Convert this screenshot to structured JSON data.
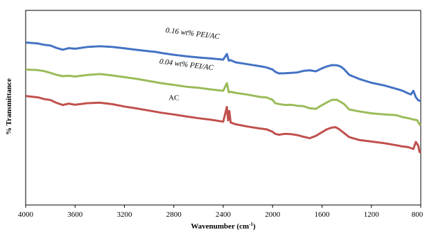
{
  "chart_data": {
    "type": "line",
    "xlabel": "Wavenumber (cm",
    "xlabel_sup": "-1",
    "xlabel_close": ")",
    "ylabel": "% Transmittance",
    "xlim": [
      4000,
      800
    ],
    "x_reversed": true,
    "x_ticks": [
      4000,
      3600,
      3200,
      2800,
      2400,
      2000,
      1600,
      1200,
      800
    ],
    "y_ticks_shown": false,
    "grid": false,
    "legend": "none",
    "series": [
      {
        "name": "0.16 wt% PEI/AC",
        "name_style": "italic",
        "color": "#4472C4",
        "points": [
          [
            4000,
            83.5
          ],
          [
            3900,
            83.0
          ],
          [
            3850,
            82.3
          ],
          [
            3800,
            82.0
          ],
          [
            3750,
            80.7
          ],
          [
            3700,
            79.8
          ],
          [
            3650,
            80.6
          ],
          [
            3600,
            80.3
          ],
          [
            3500,
            81.2
          ],
          [
            3400,
            81.6
          ],
          [
            3300,
            81.2
          ],
          [
            3200,
            80.5
          ],
          [
            3100,
            79.7
          ],
          [
            3000,
            79.0
          ],
          [
            2950,
            78.7
          ],
          [
            2900,
            78.1
          ],
          [
            2800,
            77.2
          ],
          [
            2700,
            76.4
          ],
          [
            2600,
            75.8
          ],
          [
            2500,
            75.3
          ],
          [
            2400,
            74.7
          ],
          [
            2370,
            77.6
          ],
          [
            2355,
            74.2
          ],
          [
            2340,
            74.4
          ],
          [
            2300,
            73.3
          ],
          [
            2200,
            72.3
          ],
          [
            2100,
            71.3
          ],
          [
            2050,
            70.7
          ],
          [
            2000,
            69.6
          ],
          [
            1980,
            68.5
          ],
          [
            1950,
            67.6
          ],
          [
            1900,
            67.7
          ],
          [
            1850,
            67.9
          ],
          [
            1800,
            68.1
          ],
          [
            1750,
            68.9
          ],
          [
            1700,
            69.2
          ],
          [
            1650,
            68.7
          ],
          [
            1600,
            70.2
          ],
          [
            1560,
            71.2
          ],
          [
            1520,
            71.9
          ],
          [
            1480,
            71.8
          ],
          [
            1450,
            71.2
          ],
          [
            1420,
            69.7
          ],
          [
            1380,
            66.9
          ],
          [
            1300,
            64.8
          ],
          [
            1200,
            62.8
          ],
          [
            1100,
            61.5
          ],
          [
            1000,
            59.7
          ],
          [
            950,
            58.8
          ],
          [
            900,
            57.3
          ],
          [
            880,
            56.8
          ],
          [
            860,
            58.7
          ],
          [
            840,
            55.4
          ],
          [
            820,
            53.8
          ],
          [
            800,
            53.5
          ]
        ]
      },
      {
        "name": "0.04 wt% PEI/AC",
        "name_style": "italic",
        "color": "#9BBB59",
        "points": [
          [
            4000,
            69.6
          ],
          [
            3900,
            69.3
          ],
          [
            3850,
            68.8
          ],
          [
            3800,
            67.9
          ],
          [
            3750,
            66.9
          ],
          [
            3700,
            66.2
          ],
          [
            3650,
            66.4
          ],
          [
            3600,
            66.0
          ],
          [
            3500,
            66.8
          ],
          [
            3400,
            67.3
          ],
          [
            3300,
            66.6
          ],
          [
            3200,
            65.7
          ],
          [
            3100,
            64.8
          ],
          [
            3000,
            63.7
          ],
          [
            2900,
            62.6
          ],
          [
            2800,
            61.7
          ],
          [
            2700,
            60.8
          ],
          [
            2600,
            60.2
          ],
          [
            2500,
            59.4
          ],
          [
            2400,
            58.7
          ],
          [
            2370,
            62.6
          ],
          [
            2355,
            57.9
          ],
          [
            2340,
            58.2
          ],
          [
            2300,
            57.6
          ],
          [
            2200,
            56.7
          ],
          [
            2100,
            55.5
          ],
          [
            2050,
            55.3
          ],
          [
            2000,
            54.0
          ],
          [
            1980,
            52.4
          ],
          [
            1950,
            51.9
          ],
          [
            1900,
            51.4
          ],
          [
            1850,
            51.5
          ],
          [
            1800,
            51.0
          ],
          [
            1750,
            50.8
          ],
          [
            1700,
            49.7
          ],
          [
            1650,
            49.4
          ],
          [
            1600,
            51.3
          ],
          [
            1560,
            52.7
          ],
          [
            1520,
            54.0
          ],
          [
            1480,
            54.1
          ],
          [
            1450,
            53.0
          ],
          [
            1420,
            51.8
          ],
          [
            1380,
            49.1
          ],
          [
            1300,
            48.1
          ],
          [
            1200,
            47.1
          ],
          [
            1100,
            46.6
          ],
          [
            1000,
            46.2
          ],
          [
            950,
            45.2
          ],
          [
            900,
            44.6
          ],
          [
            860,
            43.9
          ],
          [
            830,
            43.6
          ],
          [
            810,
            41.4
          ],
          [
            800,
            41.0
          ]
        ]
      },
      {
        "name": "AC",
        "name_style": "normal",
        "color": "#C0504D",
        "points": [
          [
            4000,
            56.0
          ],
          [
            3900,
            55.3
          ],
          [
            3850,
            54.4
          ],
          [
            3800,
            54.0
          ],
          [
            3750,
            52.5
          ],
          [
            3700,
            51.4
          ],
          [
            3650,
            52.1
          ],
          [
            3600,
            51.5
          ],
          [
            3500,
            52.3
          ],
          [
            3400,
            52.6
          ],
          [
            3300,
            51.8
          ],
          [
            3200,
            50.6
          ],
          [
            3100,
            49.6
          ],
          [
            3000,
            48.5
          ],
          [
            2900,
            47.4
          ],
          [
            2800,
            46.5
          ],
          [
            2700,
            45.5
          ],
          [
            2600,
            44.6
          ],
          [
            2500,
            43.8
          ],
          [
            2400,
            42.8
          ],
          [
            2370,
            50.4
          ],
          [
            2360,
            43.5
          ],
          [
            2350,
            48.3
          ],
          [
            2340,
            42.4
          ],
          [
            2300,
            41.5
          ],
          [
            2200,
            40.3
          ],
          [
            2100,
            39.3
          ],
          [
            2050,
            38.9
          ],
          [
            2000,
            37.6
          ],
          [
            1980,
            36.6
          ],
          [
            1950,
            36.1
          ],
          [
            1900,
            36.6
          ],
          [
            1850,
            36.4
          ],
          [
            1800,
            35.9
          ],
          [
            1750,
            35.1
          ],
          [
            1700,
            34.3
          ],
          [
            1650,
            35.5
          ],
          [
            1600,
            37.4
          ],
          [
            1560,
            38.9
          ],
          [
            1520,
            39.8
          ],
          [
            1490,
            40.0
          ],
          [
            1460,
            38.9
          ],
          [
            1420,
            36.9
          ],
          [
            1380,
            34.9
          ],
          [
            1300,
            33.4
          ],
          [
            1200,
            32.6
          ],
          [
            1100,
            31.8
          ],
          [
            1000,
            30.7
          ],
          [
            950,
            30.1
          ],
          [
            900,
            29.7
          ],
          [
            860,
            28.8
          ],
          [
            840,
            32.4
          ],
          [
            820,
            30.5
          ],
          [
            810,
            27.3
          ],
          [
            800,
            27.0
          ]
        ]
      }
    ]
  }
}
